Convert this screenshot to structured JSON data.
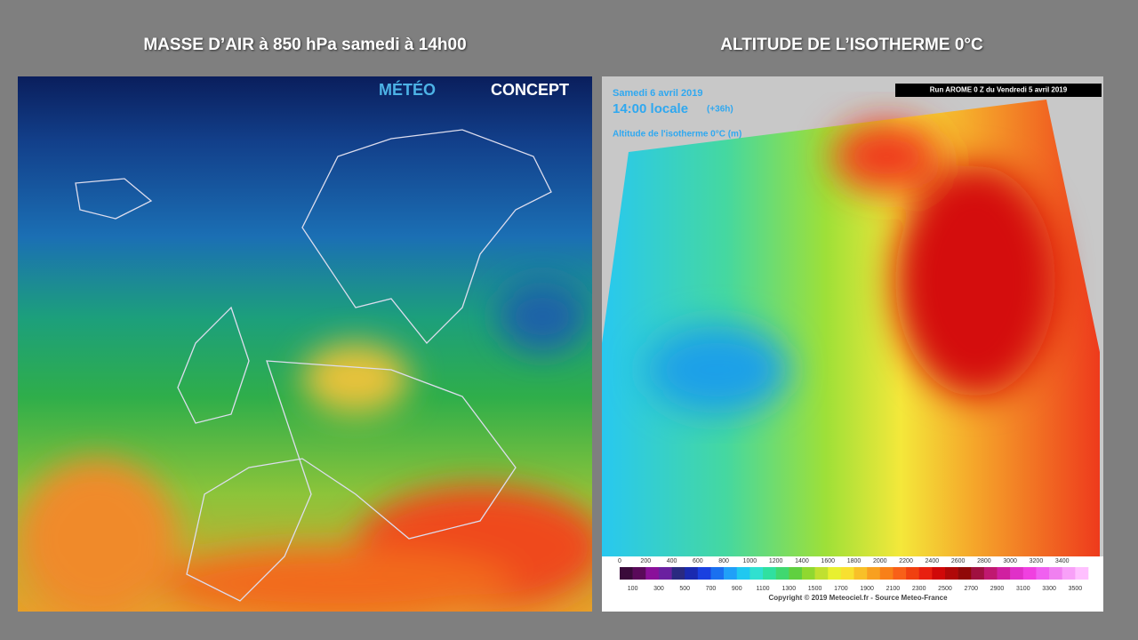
{
  "slide": {
    "left": {
      "title": "MASSE D’AIR à 850 hPa samedi à 14h00",
      "logo": [
        "MÉTÉO",
        "CONCEPT"
      ]
    },
    "right": {
      "title": "ALTITUDE DE L’ISOTHERME 0°C",
      "date": "Samedi 6 avril 2019",
      "time": "14:00 locale",
      "lead": "(+36h)",
      "field": "Altitude de l'isotherme 0°C (m)",
      "run": "Run AROME 0 Z du Vendredi 5 avril 2019",
      "legend": {
        "top": [
          "0",
          "200",
          "400",
          "600",
          "800",
          "1000",
          "1200",
          "1400",
          "1600",
          "1800",
          "2000",
          "2200",
          "2400",
          "2600",
          "2800",
          "3000",
          "3200",
          "3400"
        ],
        "bottom": [
          "100",
          "300",
          "500",
          "700",
          "900",
          "1100",
          "1300",
          "1500",
          "1700",
          "1900",
          "2100",
          "2300",
          "2500",
          "2700",
          "2900",
          "3100",
          "3300",
          "3500"
        ]
      },
      "copyright": "Copyright © 2019 Meteociel.fr - Source Meteo-France"
    }
  }
}
